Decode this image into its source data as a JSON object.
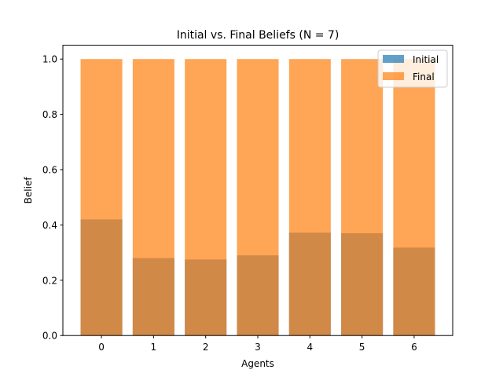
{
  "chart_data": {
    "type": "bar",
    "title": "Initial vs. Final Beliefs (N = 7)",
    "xlabel": "Agents",
    "ylabel": "Belief",
    "categories": [
      "0",
      "1",
      "2",
      "3",
      "4",
      "5",
      "6"
    ],
    "series": [
      {
        "name": "Initial",
        "color": "#1f77b4",
        "opacity": 0.7,
        "values": [
          0.42,
          0.28,
          0.275,
          0.29,
          0.372,
          0.37,
          0.318
        ]
      },
      {
        "name": "Final",
        "color": "#ff7f0e",
        "opacity": 0.7,
        "values": [
          1.0,
          1.0,
          1.0,
          1.0,
          1.0,
          1.0,
          1.0
        ]
      }
    ],
    "yticks": [
      "0.0",
      "0.2",
      "0.4",
      "0.6",
      "0.8",
      "1.0"
    ],
    "ylim": [
      0,
      1.05
    ],
    "grid": false,
    "legend": "upper right"
  }
}
